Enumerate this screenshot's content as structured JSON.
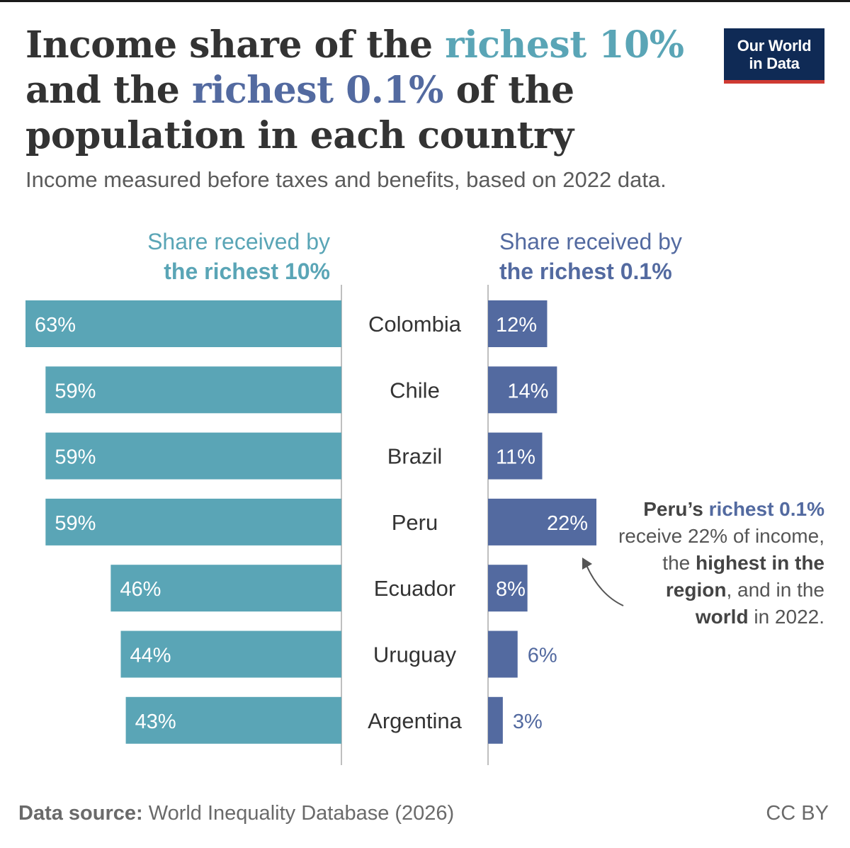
{
  "header": {
    "title_part1": "Income share of the ",
    "title_hl1": "richest 10%",
    "title_part2": " and the ",
    "title_hl2": "richest 0.1%",
    "title_part3": " of the population in each country",
    "subtitle": "Income measured before taxes and benefits, based on 2022 data."
  },
  "logo": {
    "line1": "Our World",
    "line2": "in Data"
  },
  "columns": {
    "left_line1": "Share received by",
    "left_line2": "the richest 10%",
    "right_line1": "Share received by",
    "right_line2": "the richest 0.1%"
  },
  "annotation": {
    "p1": "Peru’s ",
    "p1_hl": "richest 0.1%",
    "p2": " receive 22% of income, the ",
    "p2_b": "highest in the region",
    "p3": ", and in the ",
    "p3_b": "world",
    "p4": " in 2022."
  },
  "footer": {
    "source_label": "Data source:",
    "source_text": " World Inequality Database (2026)",
    "license": "CC BY"
  },
  "colors": {
    "top10": "#5aa5b6",
    "top01": "#536aa0",
    "axis": "#bfbfbf",
    "text": "#333333"
  },
  "chart_data": {
    "type": "bar",
    "categories": [
      "Colombia",
      "Chile",
      "Brazil",
      "Peru",
      "Ecuador",
      "Uruguay",
      "Argentina"
    ],
    "series": [
      {
        "name": "the richest 10%",
        "values": [
          63,
          59,
          59,
          59,
          46,
          44,
          43
        ],
        "labels": [
          "63%",
          "59%",
          "59%",
          "59%",
          "46%",
          "44%",
          "43%"
        ]
      },
      {
        "name": "the richest 0.1%",
        "values": [
          12,
          14,
          11,
          22,
          8,
          6,
          3
        ],
        "labels": [
          "12%",
          "14%",
          "11%",
          "22%",
          "8%",
          "6%",
          "3%"
        ]
      }
    ],
    "unit": "%",
    "orientation": "horizontal",
    "layout": "diverging, categories in center"
  }
}
